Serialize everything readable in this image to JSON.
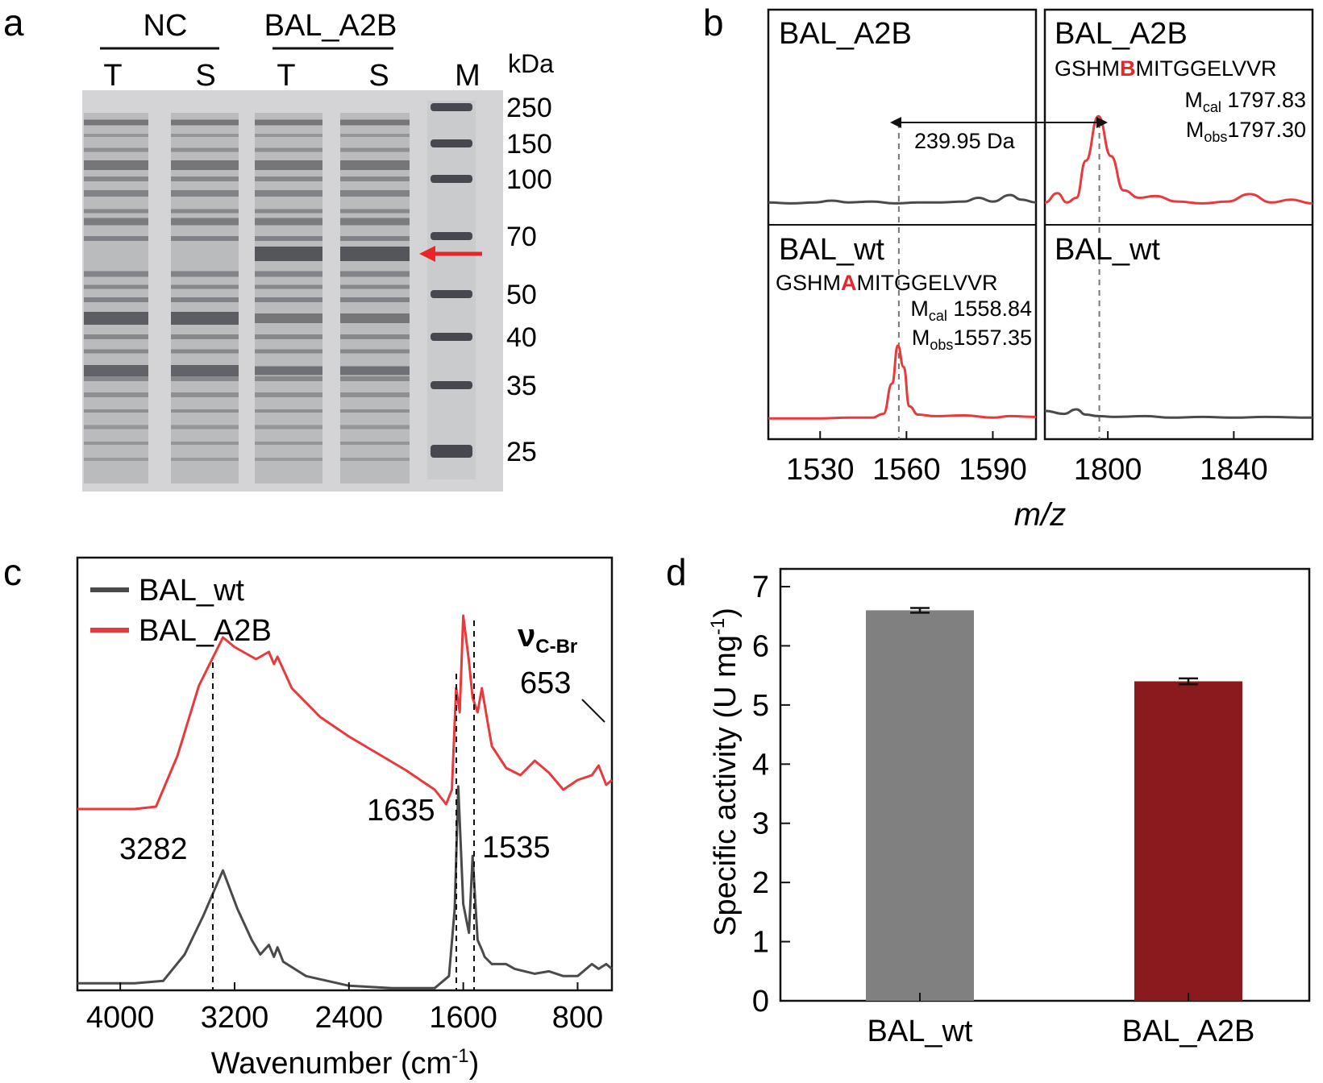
{
  "panels": {
    "a": {
      "letter": "a",
      "group_labels": [
        "NC",
        "BAL_A2B"
      ],
      "lane_labels": [
        "T",
        "S",
        "T",
        "S",
        "M"
      ],
      "unit": "kDa",
      "marker_kda": [
        250,
        150,
        100,
        70,
        50,
        40,
        35,
        25
      ],
      "arrow_color": "#e8262a"
    },
    "b": {
      "letter": "b",
      "xlabel": "m/z",
      "shift_label": "239.95 Da",
      "subpanels": [
        {
          "title": "BAL_A2B"
        },
        {
          "title": "BAL_A2B",
          "seq_pre": "GSHM",
          "seq_res": "B",
          "seq_post": "MITGGELVVR",
          "mcal_label": "M",
          "mcal_sub": "cal",
          "mcal_value": " 1797.83",
          "mobs_label": "M",
          "mobs_sub": "obs",
          "mobs_value": "1797.30"
        },
        {
          "title": "BAL_wt",
          "seq_pre": "GSHM",
          "seq_res": "A",
          "seq_post": "MITGGELVVR",
          "mcal_label": "M",
          "mcal_sub": "cal",
          "mcal_value": " 1558.84",
          "mobs_label": "M",
          "mobs_sub": "obs",
          "mobs_value": "1557.35"
        },
        {
          "title": "BAL_wt"
        }
      ]
    },
    "c": {
      "letter": "c",
      "xlabel": "Wavenumber (cm",
      "xlabel_sup": "-1",
      "xlabel_end": ")",
      "peak_labels": [
        "3282",
        "1635",
        "1535",
        "653"
      ],
      "cbr_symbol": "ν",
      "cbr_sub": "C-Br"
    },
    "d": {
      "letter": "d",
      "ylabel_main": "Specific activity (U mg",
      "ylabel_sup": "-1",
      "ylabel_end": ")"
    }
  },
  "chart_data": [
    {
      "panel": "a",
      "type": "other",
      "description_note": "",
      "lanes": [
        "T",
        "S",
        "T",
        "S",
        "M"
      ],
      "groups": [
        {
          "name": "NC",
          "lanes": [
            0,
            1
          ]
        },
        {
          "name": "BAL_A2B",
          "lanes": [
            2,
            3
          ]
        }
      ],
      "marker_kda": [
        250,
        150,
        100,
        70,
        50,
        40,
        35,
        25
      ],
      "arrow_at_kda": 65
    },
    {
      "panel": "b",
      "type": "line",
      "xlabel": "m/z",
      "left_xlim": [
        1512,
        1605
      ],
      "left_xticks": [
        1530,
        1560,
        1590
      ],
      "right_xlim": [
        1780,
        1865
      ],
      "right_xticks": [
        1800,
        1840
      ],
      "annotation": "239.95 Da",
      "series": [
        {
          "name": "BAL_A2B",
          "side": "left",
          "row": "top",
          "color": "#4a4a4a",
          "x": [
            1512,
            1520,
            1528,
            1534,
            1540,
            1548,
            1556,
            1564,
            1572,
            1580,
            1585,
            1590,
            1596,
            1600,
            1605
          ],
          "y": [
            0.05,
            0.04,
            0.05,
            0.07,
            0.05,
            0.06,
            0.04,
            0.05,
            0.05,
            0.06,
            0.1,
            0.06,
            0.13,
            0.08,
            0.05
          ]
        },
        {
          "name": "BAL_A2B",
          "side": "right",
          "row": "top",
          "color": "#e8393d",
          "x": [
            1780,
            1784,
            1787,
            1790,
            1793,
            1797,
            1801,
            1805,
            1810,
            1815,
            1822,
            1830,
            1838,
            1845,
            1852,
            1858,
            1865
          ],
          "y": [
            0.05,
            0.15,
            0.05,
            0.1,
            0.5,
            0.98,
            0.55,
            0.18,
            0.1,
            0.12,
            0.06,
            0.04,
            0.06,
            0.14,
            0.05,
            0.08,
            0.04
          ]
        },
        {
          "name": "BAL_wt",
          "side": "left",
          "row": "bottom",
          "color": "#e8393d",
          "x": [
            1512,
            1530,
            1540,
            1548,
            1552,
            1555,
            1557,
            1559,
            1561,
            1564,
            1570,
            1580,
            1590,
            1596,
            1605
          ],
          "y": [
            0.04,
            0.04,
            0.05,
            0.05,
            0.1,
            0.5,
            1.0,
            0.72,
            0.2,
            0.09,
            0.07,
            0.08,
            0.05,
            0.07,
            0.06
          ]
        },
        {
          "name": "BAL_wt",
          "side": "right",
          "row": "bottom",
          "color": "#4a4a4a",
          "x": [
            1780,
            1786,
            1790,
            1793,
            1797,
            1802,
            1812,
            1820,
            1830,
            1840,
            1850,
            1865
          ],
          "y": [
            0.14,
            0.1,
            0.16,
            0.09,
            0.07,
            0.06,
            0.07,
            0.05,
            0.06,
            0.05,
            0.06,
            0.05
          ]
        }
      ]
    },
    {
      "panel": "c",
      "type": "line",
      "xlabel": "Wavenumber (cm-1)",
      "xlim": [
        4300,
        560
      ],
      "xticks": [
        4000,
        3200,
        2400,
        1600,
        800
      ],
      "legend": "top-left",
      "series": [
        {
          "name": "BAL_wt",
          "color": "#4a4a4a",
          "x": [
            4300,
            3900,
            3700,
            3550,
            3420,
            3282,
            3180,
            3080,
            3020,
            2960,
            2925,
            2900,
            2860,
            2700,
            2400,
            2100,
            1800,
            1700,
            1660,
            1635,
            1600,
            1560,
            1535,
            1500,
            1470,
            1450,
            1400,
            1300,
            1240,
            1100,
            1000,
            900,
            800,
            700,
            653,
            600,
            560
          ],
          "y": [
            0.14,
            0.14,
            0.15,
            0.26,
            0.42,
            0.61,
            0.45,
            0.32,
            0.26,
            0.3,
            0.25,
            0.29,
            0.23,
            0.17,
            0.13,
            0.12,
            0.12,
            0.17,
            0.45,
            0.96,
            0.47,
            0.35,
            0.67,
            0.32,
            0.28,
            0.25,
            0.22,
            0.22,
            0.2,
            0.18,
            0.19,
            0.17,
            0.17,
            0.22,
            0.2,
            0.22,
            0.2
          ]
        },
        {
          "name": "BAL_A2B",
          "color": "#e8393d",
          "x": [
            4300,
            3900,
            3750,
            3600,
            3450,
            3282,
            3200,
            3050,
            2960,
            2925,
            2900,
            2800,
            2600,
            2400,
            2200,
            2000,
            1800,
            1720,
            1680,
            1650,
            1625,
            1600,
            1560,
            1535,
            1500,
            1470,
            1430,
            1400,
            1300,
            1200,
            1100,
            1000,
            900,
            800,
            700,
            653,
            600,
            560
          ],
          "y": [
            0.12,
            0.12,
            0.13,
            0.34,
            0.63,
            0.83,
            0.79,
            0.74,
            0.77,
            0.72,
            0.75,
            0.62,
            0.5,
            0.42,
            0.35,
            0.28,
            0.2,
            0.14,
            0.2,
            0.62,
            0.52,
            0.92,
            0.73,
            0.58,
            0.52,
            0.62,
            0.48,
            0.38,
            0.29,
            0.26,
            0.32,
            0.27,
            0.2,
            0.24,
            0.26,
            0.3,
            0.22,
            0.24
          ]
        }
      ]
    },
    {
      "panel": "d",
      "type": "bar",
      "categories": [
        "BAL_wt",
        "BAL_A2B"
      ],
      "values": [
        6.6,
        5.4
      ],
      "errors": [
        0.04,
        0.05
      ],
      "colors": [
        "#808080",
        "#8b1a1e"
      ],
      "ylabel": "Specific activity (U mg-1)",
      "ylim": [
        0,
        7.3
      ],
      "yticks": [
        0,
        1,
        2,
        3,
        4,
        5,
        6,
        7
      ]
    }
  ]
}
